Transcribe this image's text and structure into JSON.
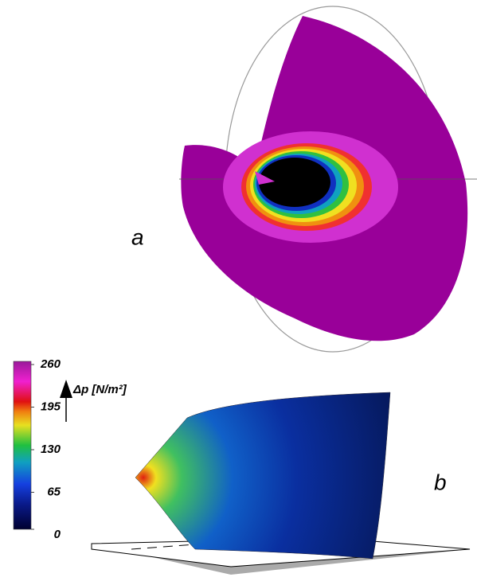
{
  "panels": {
    "a": "a",
    "b": "b"
  },
  "colorbar": {
    "label": "Δp [N/m²]",
    "lim": [
      0,
      260
    ],
    "ticks": [
      0,
      65,
      130,
      195,
      260
    ]
  }
}
